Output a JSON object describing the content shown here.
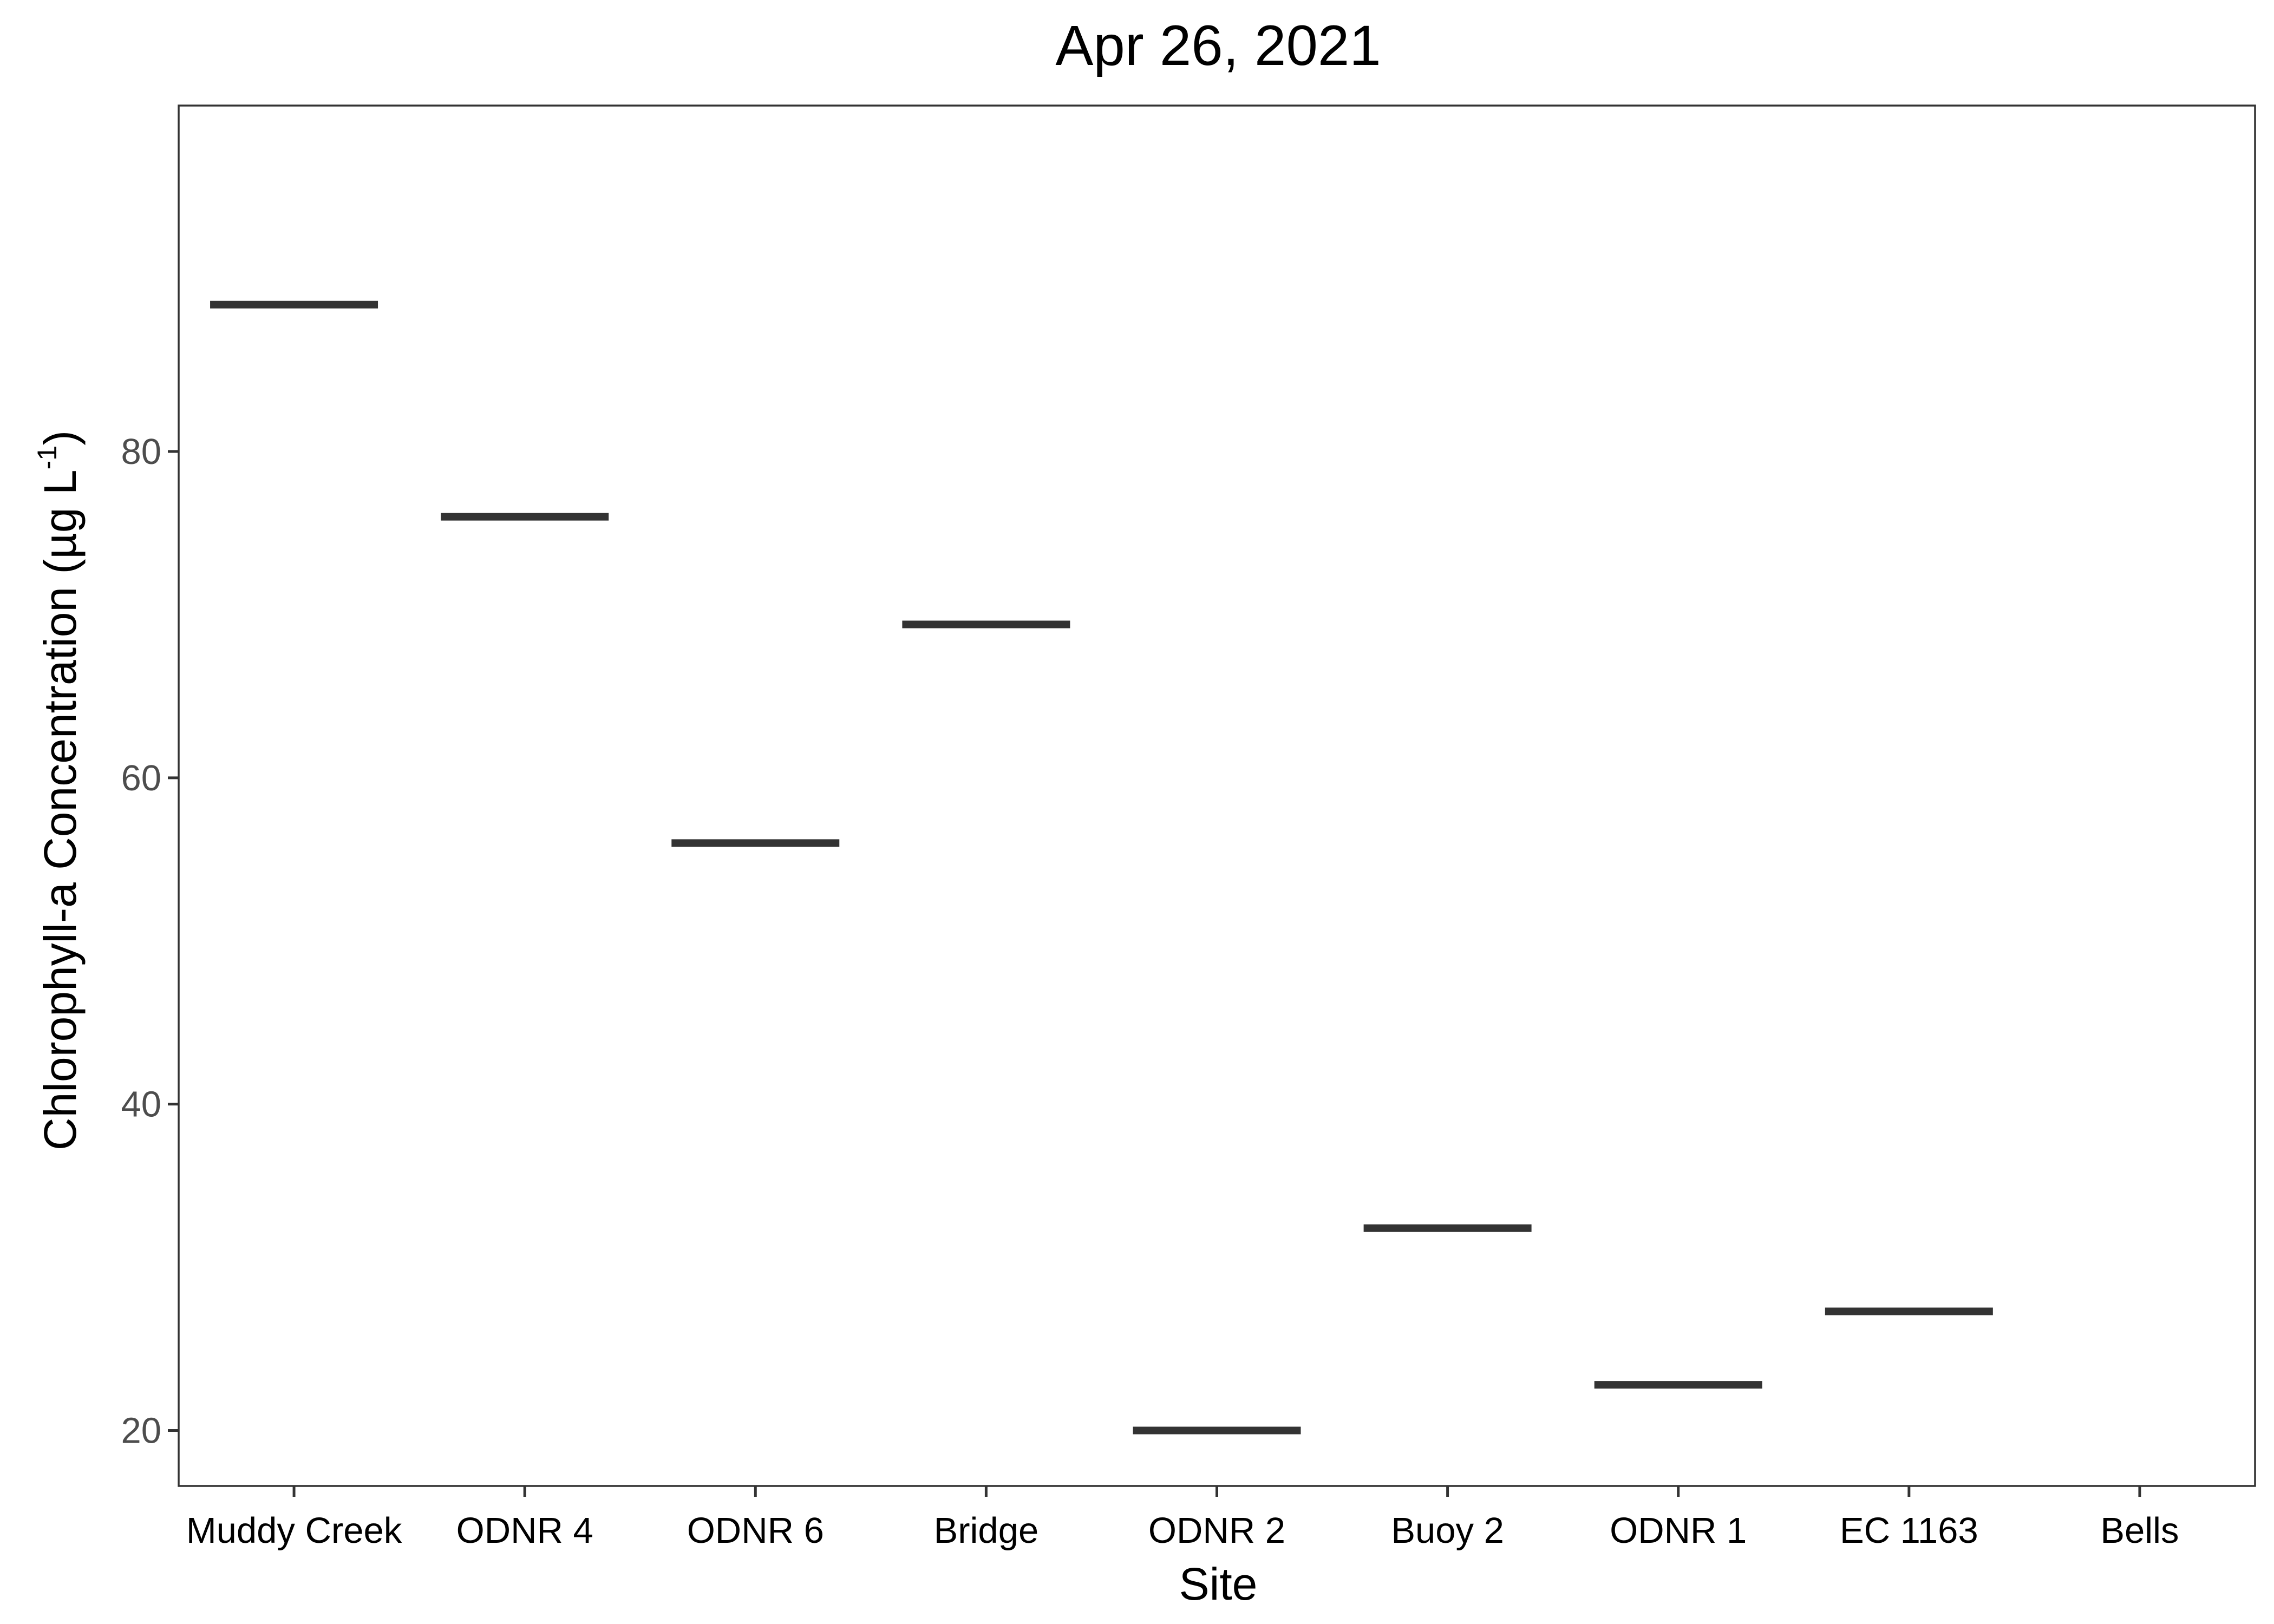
{
  "chart_data": {
    "type": "crossbar",
    "title": "Apr 26, 2021",
    "xlabel": "Site",
    "ylabel": {
      "prefix": "Chlorophyll-a Concentration (µg L",
      "superscript": "-1",
      "suffix": ")"
    },
    "categories": [
      "Muddy Creek",
      "ODNR 4",
      "ODNR 6",
      "Bridge",
      "ODNR 2",
      "Buoy 2",
      "ODNR 1",
      "EC 1163",
      "Bells"
    ],
    "values": [
      89.0,
      76.0,
      56.0,
      69.4,
      20.0,
      32.4,
      22.8,
      27.3,
      null
    ],
    "yticks": [
      20,
      40,
      60,
      80
    ],
    "ylim": [
      16.6,
      101.2
    ],
    "grid": false,
    "legend": "none",
    "colors": {
      "bar": "#333333",
      "axis": "#333333",
      "tick_text": "#4d4d4d",
      "background": "#ffffff"
    }
  }
}
